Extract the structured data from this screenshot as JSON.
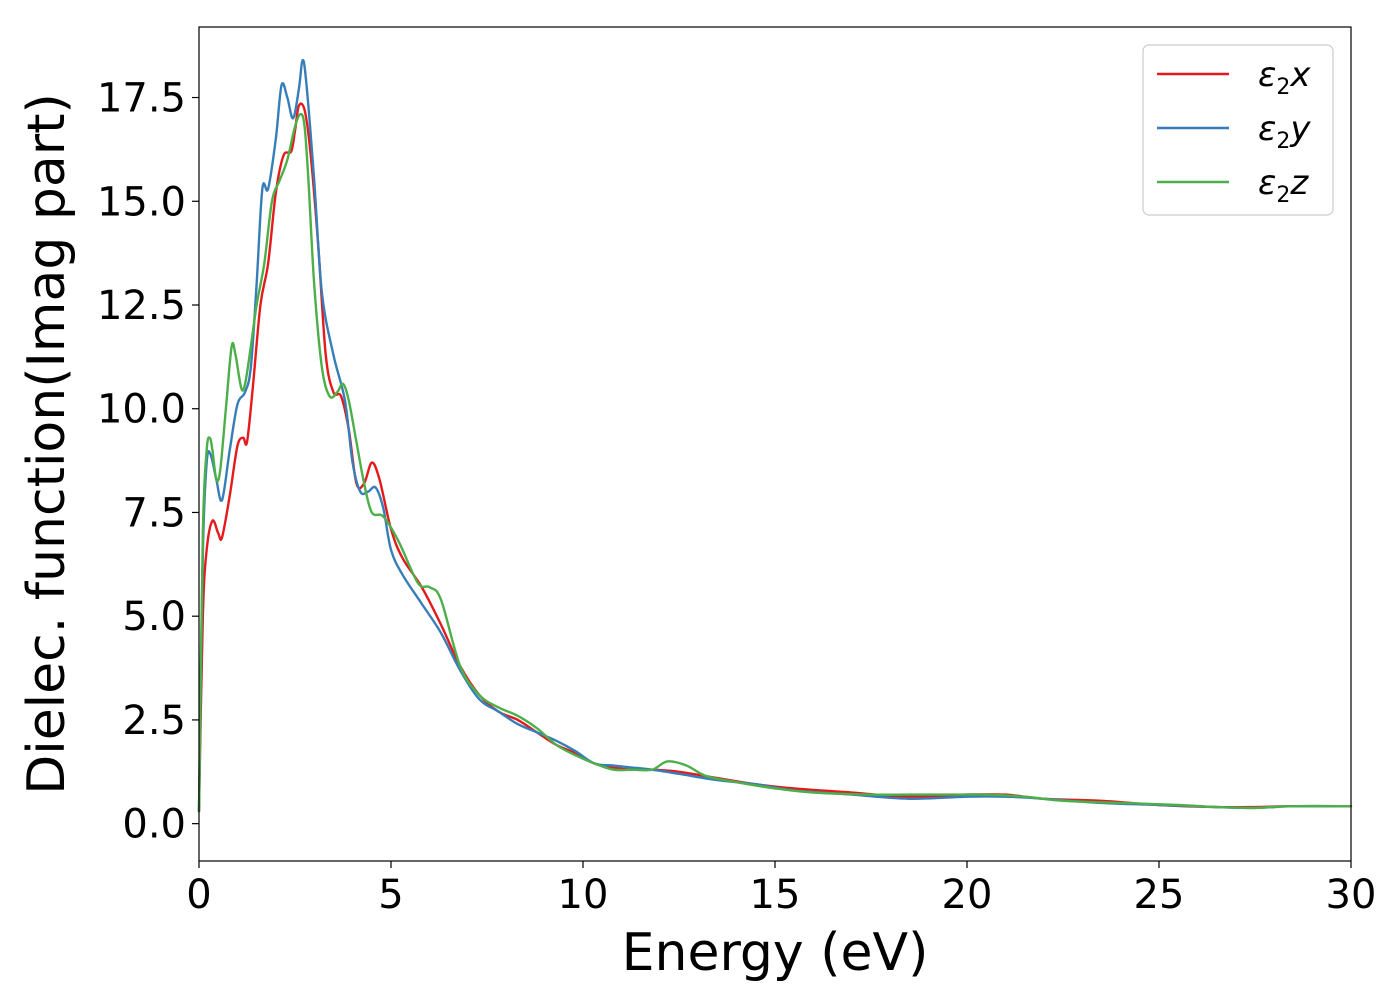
{
  "chart_data": {
    "type": "line",
    "title": "",
    "xlabel": "Energy (eV)",
    "ylabel": "Dielec. function(Imag part)",
    "xlim": [
      0,
      30
    ],
    "ylim": [
      -0.9,
      19.2
    ],
    "xticks": [
      0,
      5,
      10,
      15,
      20,
      25,
      30
    ],
    "xtick_labels": [
      "0",
      "5",
      "10",
      "15",
      "20",
      "25",
      "30"
    ],
    "yticks": [
      0,
      2.5,
      5,
      7.5,
      10,
      12.5,
      15,
      17.5
    ],
    "ytick_labels": [
      "0.0",
      "2.5",
      "5.0",
      "7.5",
      "10.0",
      "12.5",
      "15.0",
      "17.5"
    ],
    "grid": false,
    "legend_position": "top-right",
    "series": [
      {
        "name": "ε2x",
        "symbol": "ε",
        "subscript": "2",
        "suffix": "x",
        "color": "#e41a1c",
        "x": [
          0,
          0.1,
          0.2,
          0.35,
          0.5,
          0.6,
          0.8,
          1.0,
          1.15,
          1.25,
          1.4,
          1.6,
          1.8,
          2.0,
          2.2,
          2.4,
          2.5,
          2.6,
          2.75,
          2.9,
          3.1,
          3.3,
          3.5,
          3.7,
          3.9,
          4.1,
          4.3,
          4.5,
          4.7,
          5.0,
          5.3,
          5.8,
          6.3,
          6.8,
          7.3,
          7.8,
          8.3,
          8.8,
          9.3,
          9.8,
          10.3,
          10.8,
          11.3,
          11.8,
          12.5,
          13.5,
          14.5,
          15.5,
          17,
          18.5,
          20,
          21,
          22,
          23.5,
          25,
          26.5,
          27.5,
          28.5,
          30
        ],
        "y": [
          0.3,
          5.0,
          6.6,
          7.3,
          7.0,
          6.9,
          7.9,
          9.1,
          9.3,
          9.2,
          10.5,
          12.5,
          13.5,
          15.2,
          16.1,
          16.2,
          16.7,
          17.3,
          17.2,
          16.2,
          14.0,
          11.3,
          10.4,
          10.3,
          9.5,
          8.2,
          8.2,
          8.7,
          8.3,
          7.1,
          6.4,
          5.7,
          4.8,
          3.8,
          3.1,
          2.7,
          2.5,
          2.2,
          1.9,
          1.7,
          1.45,
          1.35,
          1.3,
          1.3,
          1.25,
          1.1,
          0.95,
          0.85,
          0.75,
          0.65,
          0.7,
          0.7,
          0.6,
          0.55,
          0.45,
          0.4,
          0.4,
          0.42,
          0.42
        ]
      },
      {
        "name": "ε2y",
        "symbol": "ε",
        "subscript": "2",
        "suffix": "y",
        "color": "#377eb8",
        "x": [
          0,
          0.1,
          0.2,
          0.3,
          0.45,
          0.6,
          0.8,
          1.0,
          1.2,
          1.35,
          1.5,
          1.65,
          1.8,
          2.0,
          2.15,
          2.3,
          2.45,
          2.6,
          2.7,
          2.8,
          3.0,
          3.2,
          3.5,
          3.8,
          4.0,
          4.2,
          4.4,
          4.6,
          4.8,
          5.0,
          5.3,
          5.8,
          6.3,
          6.8,
          7.3,
          7.8,
          8.3,
          8.8,
          9.3,
          9.8,
          10.3,
          10.8,
          11.3,
          11.8,
          12.5,
          13.5,
          14.5,
          15.5,
          17,
          18.5,
          20,
          21,
          22,
          23.5,
          25,
          26.5,
          27.5,
          28.5,
          30
        ],
        "y": [
          0.3,
          6.5,
          8.7,
          8.9,
          8.3,
          7.8,
          9.0,
          10.1,
          10.4,
          11.0,
          13.0,
          15.3,
          15.3,
          16.5,
          17.8,
          17.5,
          17.0,
          17.7,
          18.4,
          17.8,
          15.5,
          12.8,
          11.3,
          10.2,
          8.7,
          8.0,
          8.0,
          8.1,
          7.6,
          6.6,
          6.0,
          5.3,
          4.6,
          3.7,
          3.0,
          2.7,
          2.4,
          2.2,
          2.0,
          1.75,
          1.45,
          1.4,
          1.35,
          1.3,
          1.2,
          1.05,
          0.95,
          0.8,
          0.7,
          0.6,
          0.65,
          0.65,
          0.6,
          0.5,
          0.45,
          0.4,
          0.38,
          0.42,
          0.42
        ]
      },
      {
        "name": "ε2z",
        "symbol": "ε",
        "subscript": "2",
        "suffix": "z",
        "color": "#4daf4a",
        "x": [
          0,
          0.1,
          0.2,
          0.28,
          0.35,
          0.45,
          0.55,
          0.7,
          0.85,
          0.95,
          1.1,
          1.2,
          1.35,
          1.5,
          1.7,
          1.9,
          2.1,
          2.3,
          2.5,
          2.65,
          2.75,
          2.85,
          3.0,
          3.2,
          3.4,
          3.6,
          3.75,
          3.9,
          4.1,
          4.3,
          4.5,
          4.8,
          5.2,
          5.7,
          6.0,
          6.3,
          6.8,
          7.3,
          7.8,
          8.3,
          8.8,
          9.3,
          9.8,
          10.3,
          10.8,
          11.3,
          11.8,
          12.2,
          12.7,
          13.2,
          14,
          15,
          16,
          17.5,
          18.5,
          19.5,
          20.5,
          21.5,
          22.5,
          24,
          25.5,
          26.5,
          27.5,
          28.5,
          30
        ],
        "y": [
          0.3,
          7.0,
          9.0,
          9.3,
          9.0,
          8.3,
          8.5,
          10.0,
          11.5,
          11.3,
          10.5,
          10.6,
          11.5,
          12.5,
          13.5,
          15.0,
          15.5,
          16.0,
          16.8,
          17.1,
          16.8,
          15.5,
          13.0,
          11.0,
          10.3,
          10.4,
          10.6,
          10.2,
          9.2,
          8.2,
          7.5,
          7.4,
          6.8,
          5.8,
          5.7,
          5.4,
          3.8,
          3.1,
          2.8,
          2.6,
          2.3,
          1.9,
          1.65,
          1.45,
          1.3,
          1.3,
          1.3,
          1.5,
          1.4,
          1.15,
          1.0,
          0.85,
          0.75,
          0.7,
          0.7,
          0.7,
          0.7,
          0.65,
          0.55,
          0.5,
          0.45,
          0.4,
          0.38,
          0.42,
          0.42
        ]
      }
    ]
  }
}
